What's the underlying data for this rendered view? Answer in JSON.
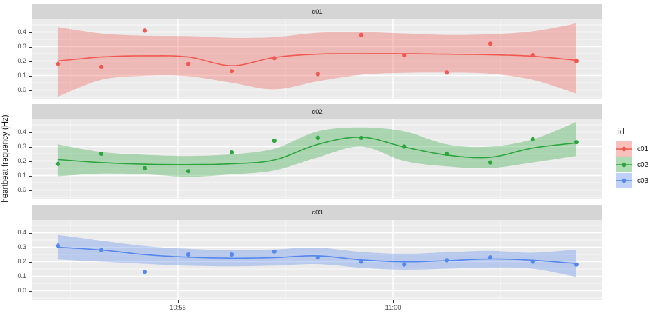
{
  "figure": {
    "ylab": "heartbeat frequency (Hz)",
    "background": "#FFFFFF",
    "panel_bg": "#EBEBEB",
    "strip_bg": "#D5D5D5",
    "grid_color": "#FFFFFF",
    "tick_color": "#333333",
    "tick_label_color": "#4D4D4D"
  },
  "legend": {
    "title": "id",
    "items": [
      {
        "label": "c01",
        "color": "#F0594F",
        "fill": "rgba(240,89,79,0.38)"
      },
      {
        "label": "c02",
        "color": "#2BA53C",
        "fill": "rgba(43,165,60,0.38)"
      },
      {
        "label": "c03",
        "color": "#5687EC",
        "fill": "rgba(86,135,236,0.38)"
      }
    ]
  },
  "chart_data": {
    "type": "scatter",
    "description": "Faceted time series: observed points with loess smooth line and confidence ribbon, one facet per subject id",
    "title": "",
    "xlabel": "",
    "ylabel": "heartbeat frequency (Hz)",
    "x_unit": "time of day (t = minutes after 10:50)",
    "x_axis": {
      "ticks": [
        {
          "label": "10:55",
          "t": 5
        },
        {
          "label": "11:00",
          "t": 10
        }
      ],
      "minor_t": [
        2.5,
        7.5,
        12.5
      ],
      "domain": [
        1.62,
        14.86
      ]
    },
    "y_axis": {
      "ticks": [
        {
          "label": "0.4",
          "v": 0.4
        },
        {
          "label": "0.3",
          "v": 0.3
        },
        {
          "label": "0.2",
          "v": 0.2
        },
        {
          "label": "0.1",
          "v": 0.1
        },
        {
          "label": "0.0",
          "v": 0.0
        }
      ],
      "minor_v": [
        -0.05,
        0.05,
        0.15,
        0.25,
        0.35,
        0.45
      ],
      "domain": [
        -0.064,
        0.488
      ]
    },
    "t": [
      2.21,
      3.22,
      4.23,
      5.24,
      6.25,
      7.24,
      8.25,
      9.26,
      10.26,
      11.25,
      12.26,
      13.25,
      14.26
    ],
    "facets": [
      {
        "label": "c01",
        "color": "#F0594F",
        "ribbon_fill": "rgba(240,89,79,0.34)",
        "points": [
          0.18,
          0.16,
          0.41,
          0.18,
          0.13,
          0.22,
          0.11,
          0.38,
          0.24,
          0.12,
          0.32,
          0.24,
          0.2
        ],
        "smooth": [
          0.2,
          0.228,
          0.236,
          0.228,
          0.168,
          0.225,
          0.247,
          0.25,
          0.25,
          0.247,
          0.243,
          0.233,
          0.205
        ],
        "ribbon_top": [
          0.435,
          0.39,
          0.375,
          0.372,
          0.36,
          0.365,
          0.395,
          0.4,
          0.39,
          0.38,
          0.385,
          0.405,
          0.46
        ],
        "ribbon_bottom": [
          -0.045,
          0.07,
          0.098,
          0.095,
          0.05,
          0.005,
          0.06,
          0.105,
          0.118,
          0.12,
          0.112,
          0.07,
          -0.025
        ]
      },
      {
        "label": "c02",
        "color": "#2BA53C",
        "ribbon_fill": "rgba(43,165,60,0.34)",
        "points": [
          0.18,
          0.25,
          0.15,
          0.13,
          0.26,
          0.34,
          0.36,
          0.36,
          0.3,
          0.25,
          0.19,
          0.35,
          0.33
        ],
        "smooth": [
          0.21,
          0.189,
          0.178,
          0.175,
          0.181,
          0.207,
          0.315,
          0.365,
          0.297,
          0.241,
          0.226,
          0.29,
          0.325
        ],
        "ribbon_top": [
          0.315,
          0.262,
          0.243,
          0.235,
          0.247,
          0.285,
          0.405,
          0.432,
          0.405,
          0.315,
          0.3,
          0.35,
          0.47
        ],
        "ribbon_bottom": [
          0.095,
          0.113,
          0.108,
          0.092,
          0.108,
          0.135,
          0.225,
          0.3,
          0.2,
          0.163,
          0.152,
          0.19,
          0.235
        ]
      },
      {
        "label": "c03",
        "color": "#5687EC",
        "ribbon_fill": "rgba(86,135,236,0.34)",
        "points": [
          0.31,
          0.28,
          0.13,
          0.25,
          0.25,
          0.27,
          0.23,
          0.2,
          0.18,
          0.21,
          0.23,
          0.2,
          0.18
        ],
        "smooth": [
          0.3,
          0.281,
          0.249,
          0.232,
          0.225,
          0.229,
          0.241,
          0.213,
          0.199,
          0.207,
          0.219,
          0.21,
          0.187
        ],
        "ribbon_top": [
          0.385,
          0.345,
          0.308,
          0.289,
          0.28,
          0.285,
          0.297,
          0.267,
          0.255,
          0.265,
          0.275,
          0.262,
          0.285
        ],
        "ribbon_bottom": [
          0.215,
          0.2,
          0.185,
          0.172,
          0.168,
          0.173,
          0.183,
          0.158,
          0.145,
          0.152,
          0.16,
          0.152,
          0.095
        ]
      }
    ]
  }
}
